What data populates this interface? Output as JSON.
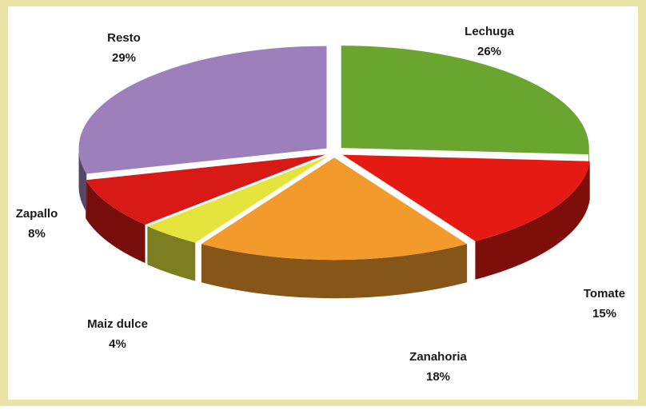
{
  "chart_data": {
    "type": "pie",
    "categories": [
      "Lechuga",
      "Tomate",
      "Zanahoria",
      "Maiz dulce",
      "Zapallo",
      "Resto"
    ],
    "values": [
      26,
      15,
      18,
      4,
      8,
      29
    ],
    "value_labels": [
      "26%",
      "15%",
      "18%",
      "4%",
      "8%",
      "29%"
    ],
    "colors": [
      "#6aa530",
      "#e51a12",
      "#f39a2c",
      "#e4e43c",
      "#d81a16",
      "#9d7fbb"
    ]
  }
}
